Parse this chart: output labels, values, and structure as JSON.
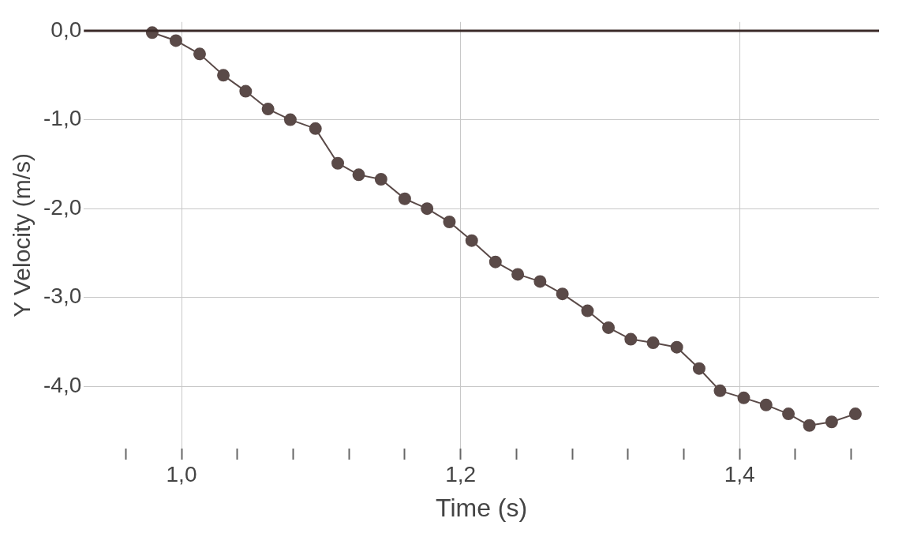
{
  "chart_data": {
    "type": "line",
    "xlabel": "Time (s)",
    "ylabel": "Y Velocity (m/s)",
    "x": [
      0.979,
      0.996,
      1.013,
      1.03,
      1.046,
      1.062,
      1.078,
      1.096,
      1.112,
      1.127,
      1.143,
      1.16,
      1.176,
      1.192,
      1.208,
      1.225,
      1.241,
      1.257,
      1.273,
      1.291,
      1.306,
      1.322,
      1.338,
      1.355,
      1.371,
      1.386,
      1.403,
      1.419,
      1.435,
      1.45,
      1.466,
      1.483
    ],
    "series": [
      {
        "color": "#5a4a48",
        "values": [
          -0.02,
          -0.11,
          -0.26,
          -0.5,
          -0.68,
          -0.88,
          -1.0,
          -1.1,
          -1.49,
          -1.62,
          -1.67,
          -1.89,
          -2.0,
          -2.15,
          -2.36,
          -2.6,
          -2.74,
          -2.82,
          -2.96,
          -3.15,
          -3.34,
          -3.47,
          -3.51,
          -3.56,
          -3.8,
          -4.05,
          -4.13,
          -4.21,
          -4.31,
          -4.44,
          -4.4,
          -4.31
        ]
      }
    ],
    "xlim": [
      0.93,
      1.5
    ],
    "xticks": [
      {
        "value": 0.96,
        "label": null
      },
      {
        "value": 1.0,
        "label": "1,0"
      },
      {
        "value": 1.04,
        "label": null
      },
      {
        "value": 1.08,
        "label": null
      },
      {
        "value": 1.12,
        "label": null
      },
      {
        "value": 1.16,
        "label": null
      },
      {
        "value": 1.2,
        "label": "1,2"
      },
      {
        "value": 1.24,
        "label": null
      },
      {
        "value": 1.28,
        "label": null
      },
      {
        "value": 1.32,
        "label": null
      },
      {
        "value": 1.36,
        "label": null
      },
      {
        "value": 1.4,
        "label": "1,4"
      },
      {
        "value": 1.44,
        "label": null
      },
      {
        "value": 1.48,
        "label": null
      }
    ],
    "ylim": [
      -4.7,
      0.1
    ],
    "yticks": [
      {
        "value": 0,
        "label": "0,0"
      },
      {
        "value": -1,
        "label": "-1,0"
      },
      {
        "value": -2,
        "label": "-2,0"
      },
      {
        "value": -3,
        "label": "-3,0"
      },
      {
        "value": -4,
        "label": "-4,0"
      }
    ],
    "ref_lines": [
      {
        "axis": "y",
        "value": 0,
        "color": "#3a2a28"
      }
    ],
    "grid": true,
    "legend": false,
    "marker": "circle",
    "line_style": "solid"
  }
}
